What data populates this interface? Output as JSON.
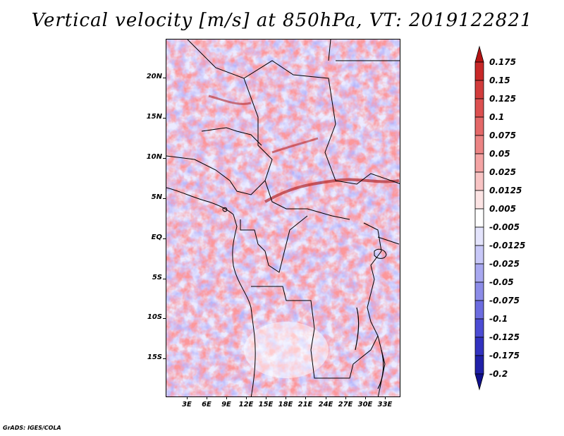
{
  "title": "Vertical velocity [m/s] at 850hPa, VT: 2019122821",
  "footer": "GrADS: IGES/COLA",
  "lat_labels": [
    "20N",
    "15N",
    "10N",
    "5N",
    "EQ",
    "5S",
    "10S",
    "15S"
  ],
  "lon_labels": [
    "3E",
    "6E",
    "9E",
    "12E",
    "15E",
    "18E",
    "21E",
    "24E",
    "27E",
    "30E",
    "33E"
  ],
  "colorbar": {
    "labels": [
      "0.175",
      "0.15",
      "0.125",
      "0.1",
      "0.075",
      "0.05",
      "0.025",
      "0.0125",
      "0.005",
      "-0.005",
      "-0.0125",
      "-0.025",
      "-0.05",
      "-0.075",
      "-0.1",
      "-0.125",
      "-0.175",
      "-0.2"
    ],
    "colors": [
      "#b41414",
      "#c82828",
      "#d23c3c",
      "#dc5050",
      "#e46868",
      "#ec8484",
      "#f4a4a4",
      "#f8c4c4",
      "#fce4e4",
      "#ffffff",
      "#e4e4fc",
      "#c8c8f8",
      "#a8a8f0",
      "#8c8ce8",
      "#6c6ce0",
      "#4c4cd4",
      "#3232c0",
      "#2020a8",
      "#10108c"
    ]
  }
}
